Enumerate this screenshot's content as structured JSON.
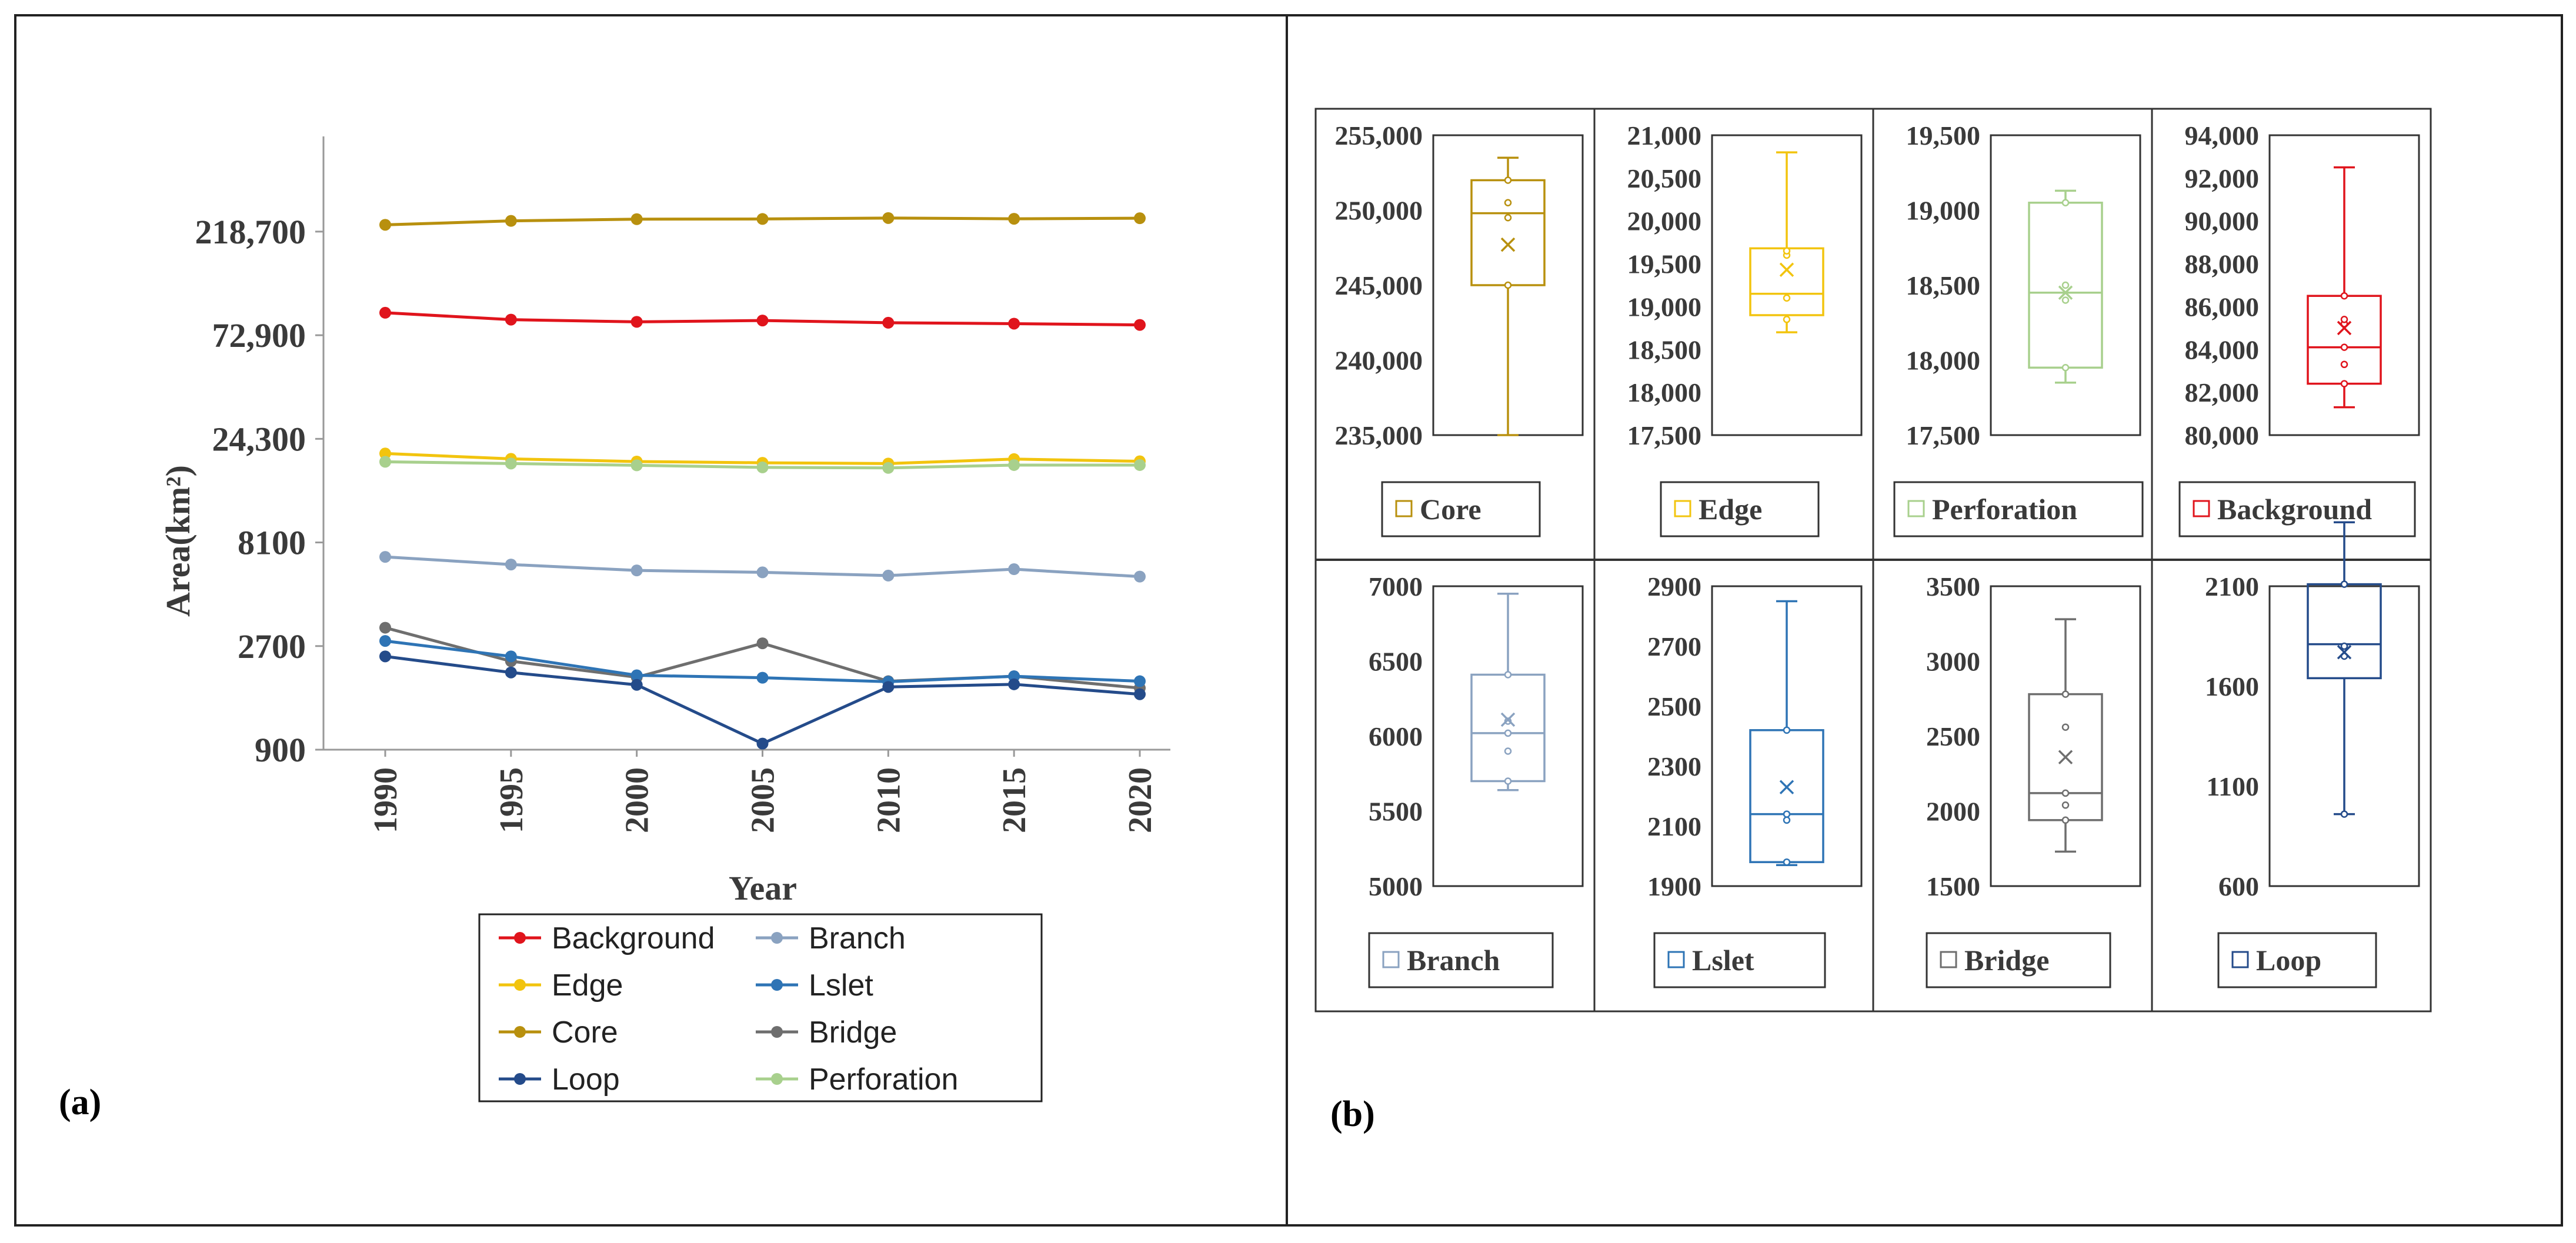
{
  "panel_a": {
    "label": "(a)",
    "legend": [
      {
        "name": "Background",
        "color": "#e0141c"
      },
      {
        "name": "Branch",
        "color": "#8aa2c0"
      },
      {
        "name": "Edge",
        "color": "#f2c40e"
      },
      {
        "name": "Lslet",
        "color": "#2e74b5"
      },
      {
        "name": "Core",
        "color": "#b8900e"
      },
      {
        "name": "Bridge",
        "color": "#6e6e6e"
      },
      {
        "name": "Loop",
        "color": "#244b8a"
      },
      {
        "name": "Perforation",
        "color": "#a8d08d"
      }
    ]
  },
  "panel_b": {
    "label": "(b)"
  },
  "chart_data": [
    {
      "type": "line",
      "title": "",
      "xlabel": "Year",
      "ylabel": "Area(km²)",
      "yscale": "log",
      "ylim": [
        900,
        600000
      ],
      "yticks": [
        900,
        2700,
        8100,
        24300,
        72900,
        218700
      ],
      "ytick_labels": [
        "900",
        "2700",
        "8100",
        "24,300",
        "72,900",
        "218,700"
      ],
      "x": [
        "1990",
        "1995",
        "2000",
        "2005",
        "2010",
        "2015",
        "2020"
      ],
      "series": [
        {
          "name": "Core",
          "color": "#b8900e",
          "values": [
            235000,
            245000,
            249500,
            250000,
            252500,
            250500,
            252000
          ]
        },
        {
          "name": "Background",
          "color": "#e0141c",
          "values": [
            92500,
            86000,
            84000,
            85200,
            83200,
            82400,
            81300
          ]
        },
        {
          "name": "Edge",
          "color": "#f2c40e",
          "values": [
            20800,
            19650,
            19100,
            18850,
            18700,
            19600,
            19150
          ]
        },
        {
          "name": "Perforation",
          "color": "#a8d08d",
          "values": [
            19050,
            18700,
            18350,
            17950,
            17850,
            18400,
            18400
          ]
        },
        {
          "name": "Branch",
          "color": "#8aa2c0",
          "values": [
            6950,
            6410,
            6020,
            5900,
            5700,
            6100,
            5640
          ]
        },
        {
          "name": "Bridge",
          "color": "#6e6e6e",
          "values": [
            3280,
            2300,
            1940,
            2780,
            1860,
            1960,
            1730
          ]
        },
        {
          "name": "Lslet",
          "color": "#2e74b5",
          "values": [
            2850,
            2420,
            1980,
            1930,
            1850,
            1960,
            1860
          ]
        },
        {
          "name": "Loop",
          "color": "#244b8a",
          "values": [
            2420,
            2040,
            1790,
            960,
            1750,
            1800,
            1620
          ]
        }
      ]
    },
    {
      "type": "box",
      "title": "Core",
      "color": "#b8900e",
      "ylim": [
        235000,
        255000
      ],
      "yticks": [
        235000,
        240000,
        245000,
        250000,
        255000
      ],
      "ytick_labels": [
        "235,000",
        "240,000",
        "245,000",
        "250,000",
        "255,000"
      ],
      "min": 235000,
      "q1": 245000,
      "median": 249800,
      "q3": 252000,
      "max": 253500,
      "mean": 247700,
      "points": [
        245000,
        249500,
        250500,
        252000
      ]
    },
    {
      "type": "box",
      "title": "Edge",
      "color": "#f2c40e",
      "ylim": [
        17500,
        21000
      ],
      "yticks": [
        17500,
        18000,
        18500,
        19000,
        19500,
        20000,
        20500,
        21000
      ],
      "ytick_labels": [
        "17,500",
        "18,000",
        "18,500",
        "19,000",
        "19,500",
        "20,000",
        "20,500",
        "21,000"
      ],
      "min": 18700,
      "q1": 18900,
      "median": 19150,
      "q3": 19680,
      "max": 20800,
      "mean": 19430,
      "points": [
        18850,
        19100,
        19600,
        19650
      ]
    },
    {
      "type": "box",
      "title": "Perforation",
      "color": "#a8d08d",
      "ylim": [
        17500,
        19500
      ],
      "yticks": [
        17500,
        18000,
        18500,
        19000,
        19500
      ],
      "ytick_labels": [
        "17,500",
        "18,000",
        "18,500",
        "19,000",
        "19,500"
      ],
      "min": 17850,
      "q1": 17950,
      "median": 18450,
      "q3": 19050,
      "max": 19130,
      "mean": 18450,
      "points": [
        17950,
        18400,
        18500,
        19050
      ]
    },
    {
      "type": "box",
      "title": "Background",
      "color": "#e0141c",
      "ylim": [
        80000,
        94000
      ],
      "yticks": [
        80000,
        82000,
        84000,
        86000,
        88000,
        90000,
        92000,
        94000
      ],
      "ytick_labels": [
        "80,000",
        "82,000",
        "84,000",
        "86,000",
        "88,000",
        "90,000",
        "92,000",
        "94,000"
      ],
      "min": 81300,
      "q1": 82400,
      "median": 84100,
      "q3": 86500,
      "max": 92500,
      "mean": 85000,
      "points": [
        82400,
        83300,
        84100,
        85200,
        85400,
        86500
      ]
    },
    {
      "type": "box",
      "title": "Branch",
      "color": "#8aa2c0",
      "ylim": [
        5000,
        7000
      ],
      "yticks": [
        5000,
        5500,
        6000,
        6500,
        7000
      ],
      "ytick_labels": [
        "5000",
        "5500",
        "6000",
        "6500",
        "7000"
      ],
      "min": 5640,
      "q1": 5700,
      "median": 6020,
      "q3": 6410,
      "max": 6950,
      "mean": 6110,
      "points": [
        5700,
        5900,
        6020,
        6100,
        6410
      ]
    },
    {
      "type": "box",
      "title": "Lslet",
      "color": "#2e74b5",
      "ylim": [
        1900,
        2900
      ],
      "yticks": [
        1900,
        2100,
        2300,
        2500,
        2700,
        2900
      ],
      "ytick_labels": [
        "1900",
        "2100",
        "2300",
        "2500",
        "2700",
        "2900"
      ],
      "min": 1970,
      "q1": 1980,
      "median": 2140,
      "q3": 2420,
      "max": 2850,
      "mean": 2230,
      "points": [
        1980,
        2120,
        2140,
        2420
      ]
    },
    {
      "type": "box",
      "title": "Bridge",
      "color": "#6e6e6e",
      "ylim": [
        1500,
        3500
      ],
      "yticks": [
        1500,
        2000,
        2500,
        3000,
        3500
      ],
      "ytick_labels": [
        "1500",
        "2000",
        "2500",
        "3000",
        "3500"
      ],
      "min": 1730,
      "q1": 1940,
      "median": 2120,
      "q3": 2780,
      "max": 3280,
      "mean": 2360,
      "points": [
        1940,
        2040,
        2120,
        2560,
        2780
      ]
    },
    {
      "type": "box",
      "title": "Loop",
      "color": "#244b8a",
      "ylim": [
        600,
        2100
      ],
      "yticks": [
        600,
        1100,
        1600,
        2100
      ],
      "ytick_labels": [
        "600",
        "1100",
        "1600",
        "2100"
      ],
      "min": 960,
      "q1": 1640,
      "median": 1810,
      "q3": 2110,
      "max": 2420,
      "mean": 1770,
      "points": [
        960,
        1750,
        1800,
        2110
      ]
    }
  ]
}
